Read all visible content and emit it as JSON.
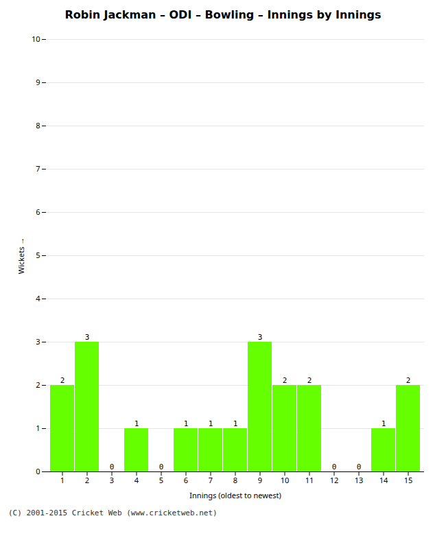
{
  "chart_data": {
    "type": "bar",
    "title": "Robin Jackman – ODI – Bowling – Innings by Innings",
    "xlabel": "Innings (oldest to newest)",
    "ylabel": "Wickets",
    "footer": "(C) 2001-2015 Cricket Web (www.cricketweb.net)",
    "categories": [
      1,
      2,
      3,
      4,
      5,
      6,
      7,
      8,
      9,
      10,
      11,
      12,
      13,
      14,
      15
    ],
    "values": [
      2,
      3,
      0,
      1,
      0,
      1,
      1,
      1,
      3,
      2,
      2,
      0,
      0,
      1,
      2
    ],
    "color": "#66ff00",
    "ylim": [
      0,
      10
    ],
    "yticks": [
      0,
      1,
      2,
      3,
      4,
      5,
      6,
      7,
      8,
      9,
      10
    ],
    "grid": true,
    "data_labels": true
  }
}
